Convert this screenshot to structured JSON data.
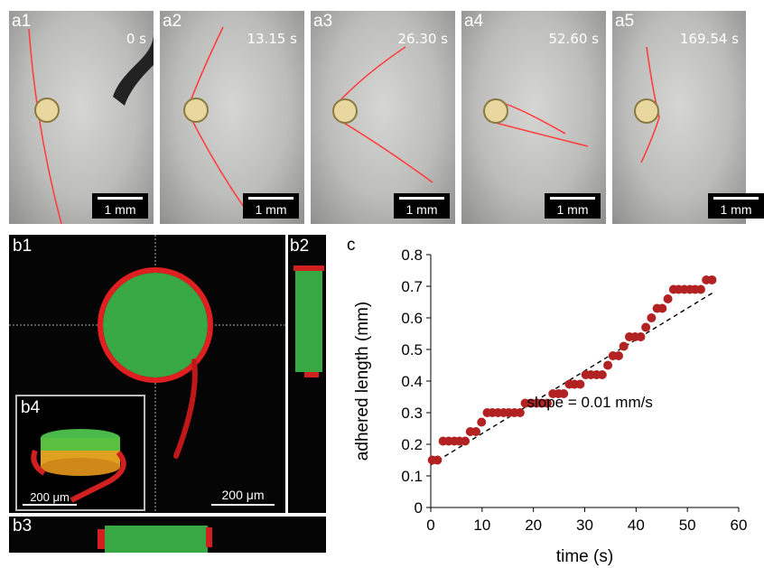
{
  "frames": [
    {
      "label": "a1",
      "time": "0 s",
      "scale": "1 mm"
    },
    {
      "label": "a2",
      "time": "13.15 s",
      "scale": "1 mm"
    },
    {
      "label": "a3",
      "time": "26.30 s",
      "scale": "1 mm"
    },
    {
      "label": "a4",
      "time": "52.60 s",
      "scale": "1 mm"
    },
    {
      "label": "a5",
      "time": "169.54 s",
      "scale": "1 mm"
    }
  ],
  "panel_b": {
    "b1_label": "b1",
    "b2_label": "b2",
    "b3_label": "b3",
    "b4_label": "b4",
    "scale_main": "200 μm",
    "scale_inset": "200 μm"
  },
  "chart_label": "c",
  "colors": {
    "points": "#b22222",
    "fiber": "#ff2a2a",
    "green": "#3cb043"
  },
  "chart_data": {
    "type": "scatter",
    "xlabel": "time (s)",
    "ylabel": "adhered length (mm)",
    "xlim": [
      0,
      60
    ],
    "ylim": [
      0,
      0.8
    ],
    "xticks": [
      0,
      10,
      20,
      30,
      40,
      50,
      60
    ],
    "yticks": [
      0,
      0.1,
      0.2,
      0.3,
      0.4,
      0.5,
      0.6,
      0.7,
      0.8
    ],
    "grid": false,
    "annotation": "slope = 0.01 mm/s",
    "x": [
      0.3,
      1.3,
      2.4,
      3.5,
      4.6,
      5.6,
      6.7,
      7.7,
      8.8,
      9.9,
      11.0,
      12.0,
      13.1,
      14.2,
      15.2,
      16.3,
      17.4,
      18.4,
      19.5,
      20.6,
      21.6,
      22.7,
      23.8,
      24.9,
      25.9,
      27.0,
      28.0,
      29.1,
      30.2,
      31.2,
      32.3,
      33.4,
      34.5,
      35.5,
      36.6,
      37.6,
      38.7,
      39.8,
      40.9,
      41.9,
      43.0,
      44.1,
      45.1,
      46.2,
      47.3,
      48.3,
      49.4,
      50.5,
      51.5,
      52.6,
      53.7,
      54.8
    ],
    "y": [
      0.15,
      0.15,
      0.21,
      0.21,
      0.21,
      0.21,
      0.21,
      0.24,
      0.24,
      0.27,
      0.3,
      0.3,
      0.3,
      0.3,
      0.3,
      0.3,
      0.3,
      0.33,
      0.33,
      0.33,
      0.33,
      0.33,
      0.36,
      0.36,
      0.36,
      0.39,
      0.39,
      0.39,
      0.42,
      0.42,
      0.42,
      0.42,
      0.45,
      0.48,
      0.48,
      0.51,
      0.54,
      0.54,
      0.54,
      0.57,
      0.6,
      0.63,
      0.63,
      0.66,
      0.69,
      0.69,
      0.69,
      0.69,
      0.69,
      0.69,
      0.72,
      0.72
    ],
    "fit_line": {
      "x": [
        0,
        55
      ],
      "y": [
        0.135,
        0.68
      ]
    }
  }
}
